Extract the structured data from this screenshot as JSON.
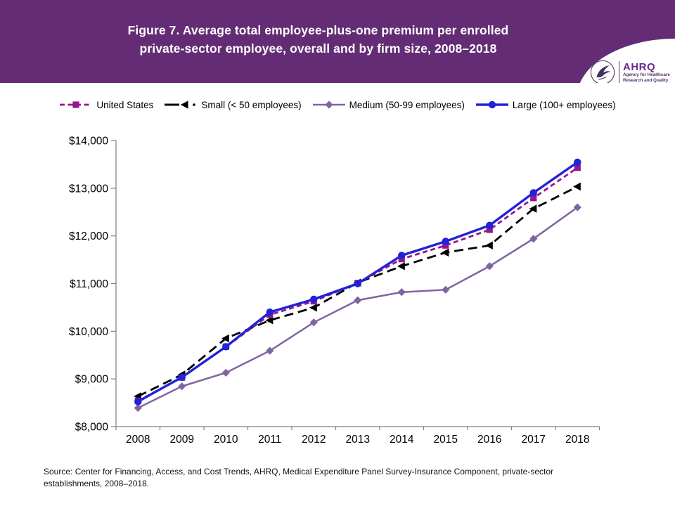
{
  "header": {
    "title_line1": "Figure 7. Average total employee-plus-one premium per enrolled",
    "title_line2": "private-sector employee, overall and by firm size, 2008–2018",
    "banner_color": "#642C74",
    "logo": {
      "org_abbrev": "AHRQ",
      "org_tagline_line1": "Agency for Healthcare",
      "org_tagline_line2": "Research and Quality"
    }
  },
  "chart_data": {
    "type": "line",
    "title": "Average total employee-plus-one premium per enrolled private-sector employee, overall and by firm size, 2008–2018",
    "categories": [
      "2008",
      "2009",
      "2010",
      "2011",
      "2012",
      "2013",
      "2014",
      "2015",
      "2016",
      "2017",
      "2018"
    ],
    "xlabel": "",
    "ylabel": "",
    "ylim": [
      8000,
      14000
    ],
    "grid": false,
    "legend_position": "top",
    "y_axis": {
      "min": 8000,
      "max": 14000,
      "step": 1000,
      "ticks": [
        {
          "value": 14000,
          "label": "$14,000"
        },
        {
          "value": 13000,
          "label": "$13,000"
        },
        {
          "value": 12000,
          "label": "$12,000"
        },
        {
          "value": 11000,
          "label": "$11,000"
        },
        {
          "value": 10000,
          "label": "$10,000"
        },
        {
          "value": 9000,
          "label": "$9,000"
        },
        {
          "value": 8000,
          "label": "$8,000"
        }
      ]
    },
    "series": [
      {
        "name": "United States",
        "color": "#93188E",
        "marker": "square",
        "dash": "7 4.5",
        "line_width": 2.8,
        "values": [
          8540,
          9030,
          9675,
          10345,
          10630,
          11010,
          11515,
          11800,
          12130,
          12795,
          13430
        ]
      },
      {
        "name": "Small (< 50 employees)",
        "color": "#000000",
        "marker": "triangle-left",
        "dash": "13 7",
        "line_width": 2.8,
        "values": [
          8635,
          9090,
          9850,
          10230,
          10495,
          11020,
          11365,
          11650,
          11800,
          12570,
          13035
        ]
      },
      {
        "name": "Medium (50-99 employees)",
        "color": "#8064A2",
        "marker": "diamond",
        "dash": null,
        "line_width": 2.5,
        "values": [
          8390,
          8845,
          9130,
          9590,
          10185,
          10650,
          10820,
          10870,
          11365,
          11940,
          12600
        ]
      },
      {
        "name": "Large (100+ employees)",
        "color": "#2222D8",
        "marker": "circle",
        "dash": null,
        "line_width": 3.4,
        "values": [
          8525,
          9035,
          9675,
          10400,
          10670,
          11000,
          11590,
          11885,
          12220,
          12905,
          13545
        ]
      }
    ]
  },
  "source": {
    "line1": "Source: Center for Financing, Access, and Cost Trends, AHRQ, Medical Expenditure Panel Survey-Insurance  Component,  private-sector",
    "line2": "establishments, 2008–2018."
  }
}
